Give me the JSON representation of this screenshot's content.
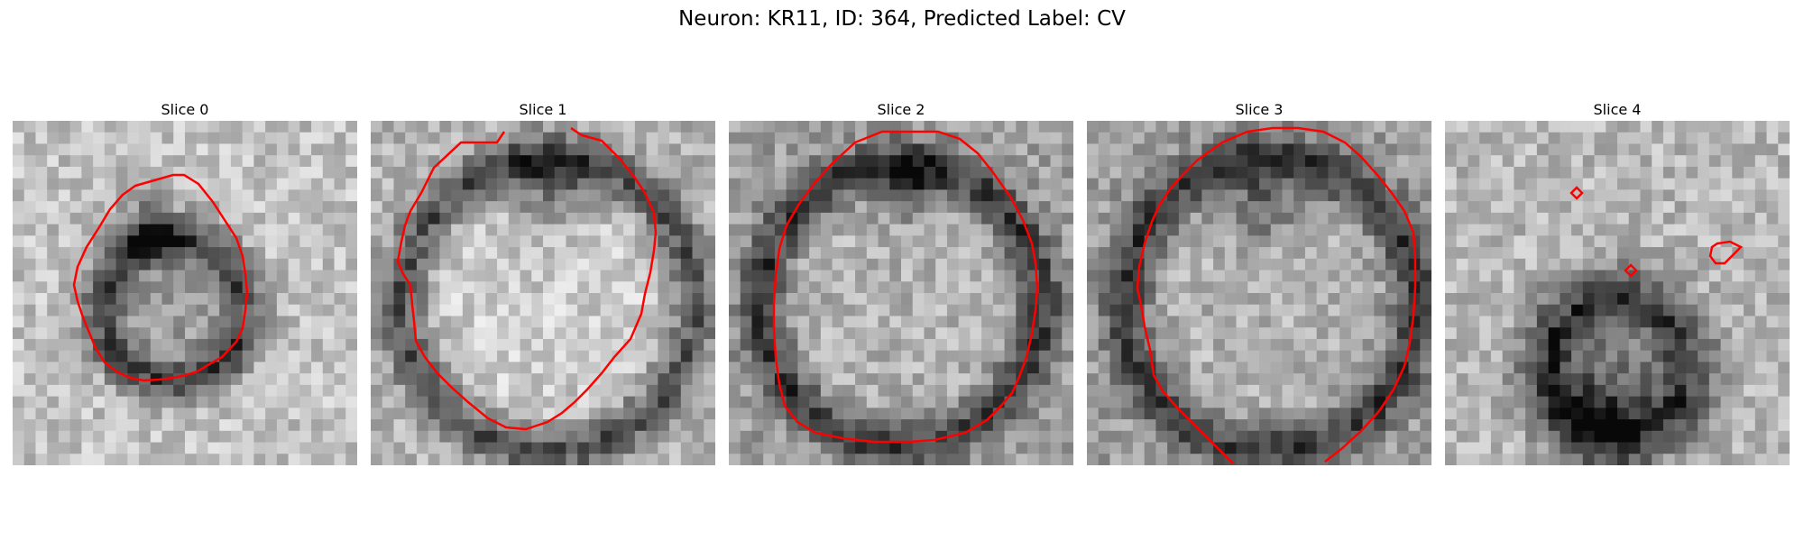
{
  "figure": {
    "title": "Neuron: KR11, ID: 364, Predicted Label: CV"
  },
  "panels": [
    {
      "title": "Slice 0"
    },
    {
      "title": "Slice 1"
    },
    {
      "title": "Slice 2"
    },
    {
      "title": "Slice 3"
    },
    {
      "title": "Slice 4"
    }
  ],
  "colors": {
    "contour": "#ff0000",
    "background": "#ffffff"
  }
}
